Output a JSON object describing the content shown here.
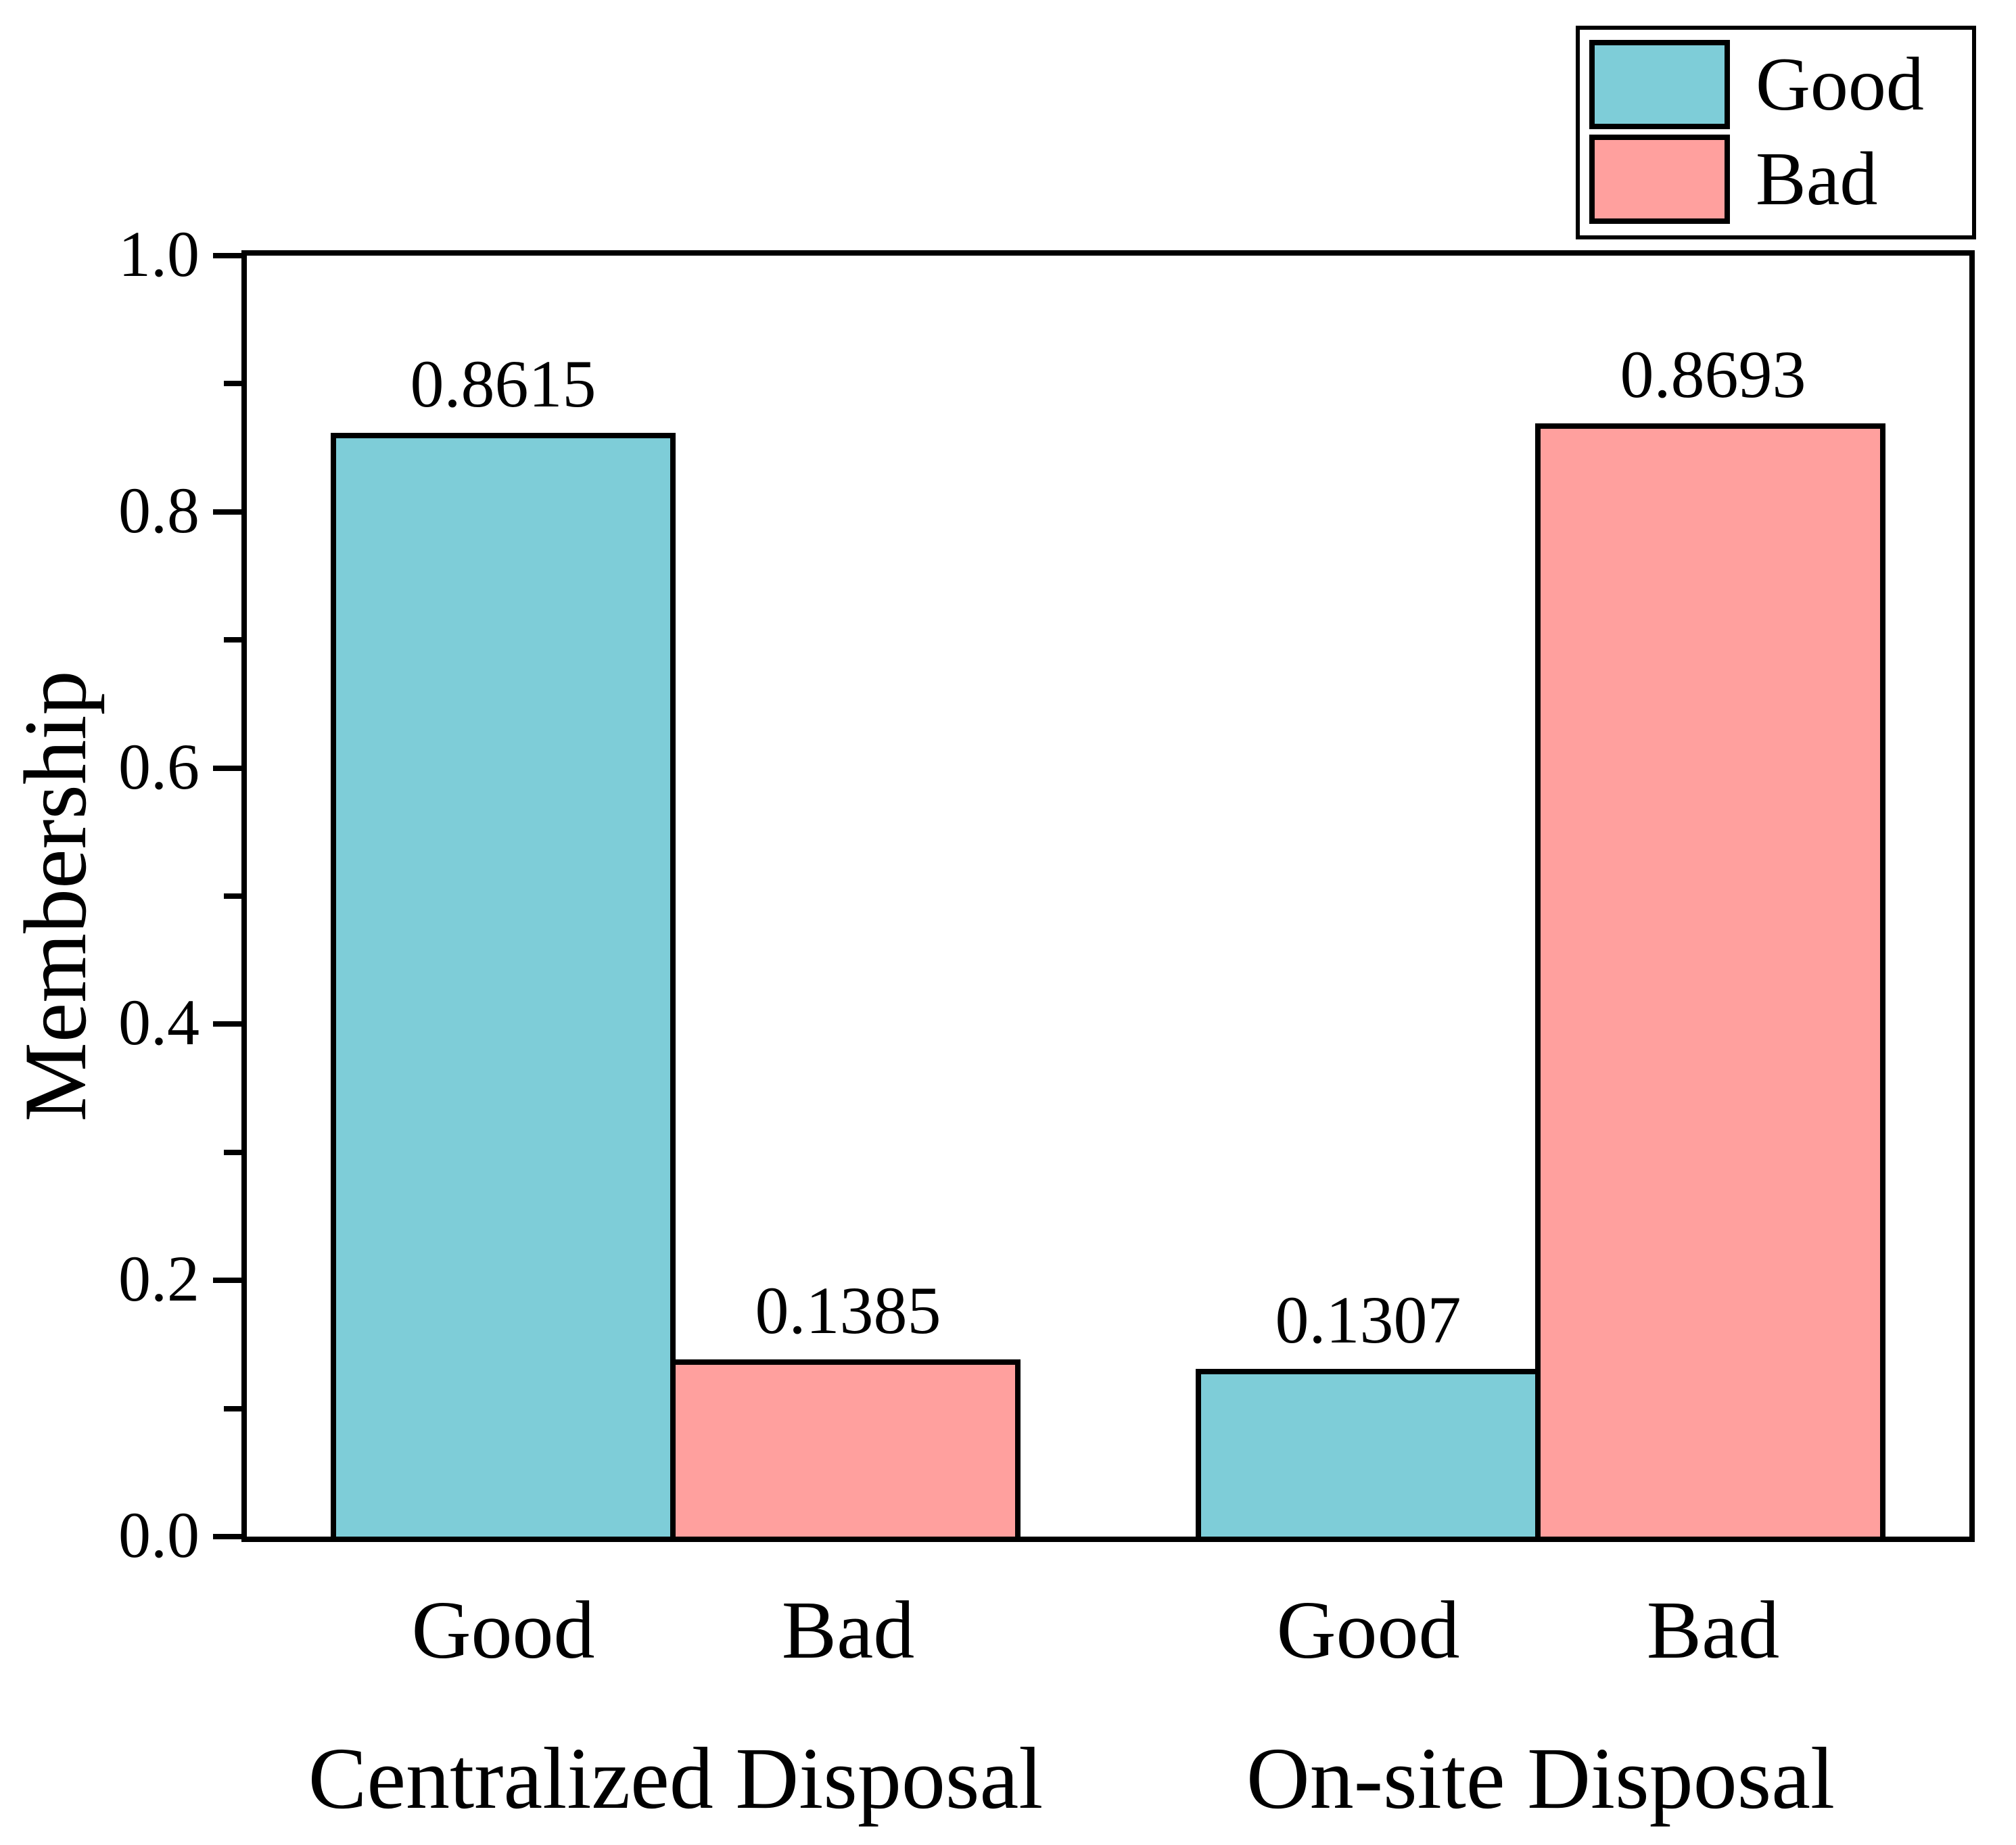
{
  "chart_data": {
    "type": "bar",
    "title": "",
    "xlabel": "",
    "ylabel": "Membership",
    "ylim": [
      0.0,
      1.0
    ],
    "grid": false,
    "y_major_ticks": [
      0.0,
      0.2,
      0.4,
      0.6,
      0.8,
      1.0
    ],
    "y_major_tick_labels": [
      "0.0",
      "0.2",
      "0.4",
      "0.6",
      "0.8",
      "1.0"
    ],
    "y_minor_tick_step": 0.1,
    "groups": [
      {
        "label": "Centralized Disposal",
        "bars": [
          {
            "series": "Good",
            "tick_label": "Good",
            "value": 0.8615,
            "value_label": "0.8615"
          },
          {
            "series": "Bad",
            "tick_label": "Bad",
            "value": 0.1385,
            "value_label": "0.1385"
          }
        ]
      },
      {
        "label": "On-site Disposal",
        "bars": [
          {
            "series": "Good",
            "tick_label": "Good",
            "value": 0.1307,
            "value_label": "0.1307"
          },
          {
            "series": "Bad",
            "tick_label": "Bad",
            "value": 0.8693,
            "value_label": "0.8693"
          }
        ]
      }
    ],
    "legend": {
      "position": "top-right",
      "entries": [
        {
          "label": "Good",
          "color": "#7ECDD8"
        },
        {
          "label": "Bad",
          "color": "#FFA09E"
        }
      ]
    },
    "colors": {
      "bar_border": "#000000",
      "axis": "#000000",
      "background": "#FFFFFF"
    }
  }
}
